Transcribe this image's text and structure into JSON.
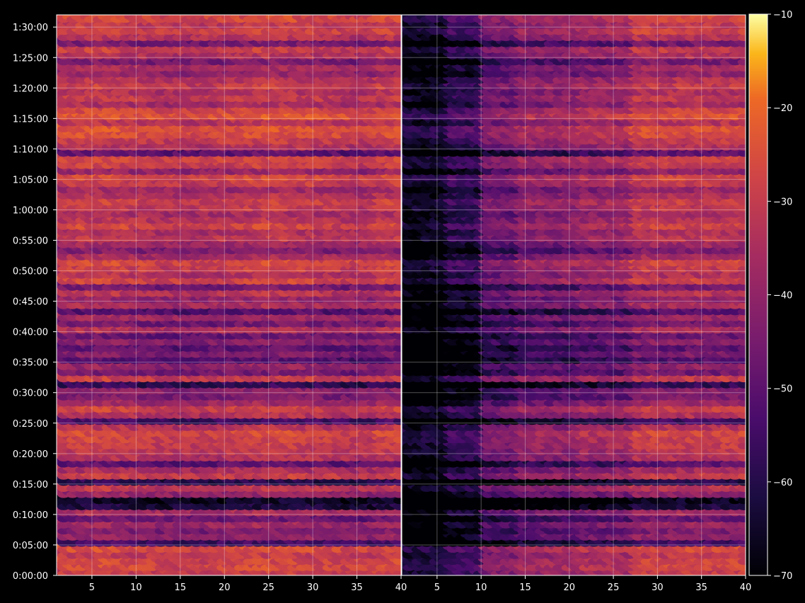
{
  "chart_data": {
    "type": "heatmap",
    "colormap": "inferno",
    "background": "#000000",
    "grid": true,
    "panels": [
      {
        "name": "",
        "x_ticks": [
          "5",
          "10",
          "15",
          "20",
          "25",
          "30",
          "35",
          "40"
        ],
        "x_tick_values": [
          5,
          10,
          15,
          20,
          25,
          30,
          35,
          40
        ],
        "xlim": [
          1,
          40
        ],
        "row_profile": "left",
        "description_hidden": ""
      },
      {
        "name": "",
        "x_ticks": [
          "5",
          "10",
          "15",
          "20",
          "25",
          "30",
          "35",
          "40"
        ],
        "x_tick_values": [
          5,
          10,
          15,
          20,
          25,
          30,
          35,
          40
        ],
        "xlim": [
          1,
          40
        ],
        "row_profile": "right"
      }
    ],
    "y_ticks": [
      "0:00:00",
      "0:05:00",
      "0:10:00",
      "0:15:00",
      "0:20:00",
      "0:25:00",
      "0:30:00",
      "0:35:00",
      "0:40:00",
      "0:45:00",
      "0:50:00",
      "0:55:00",
      "1:00:00",
      "1:05:00",
      "1:10:00",
      "1:15:00",
      "1:20:00",
      "1:25:00",
      "1:30:00"
    ],
    "y_tick_minutes": [
      0,
      5,
      10,
      15,
      20,
      25,
      30,
      35,
      40,
      45,
      50,
      55,
      60,
      65,
      70,
      75,
      80,
      85,
      90
    ],
    "ylim_minutes": [
      0,
      92
    ],
    "colorbar": {
      "ticks": [
        "−10",
        "−20",
        "−30",
        "−40",
        "−50",
        "−60",
        "−70"
      ],
      "tick_values": [
        -10,
        -20,
        -30,
        -40,
        -50,
        -60,
        -70
      ],
      "range": [
        -70,
        -10
      ]
    },
    "row_levels_minutes": [
      [
        0,
        1,
        -30
      ],
      [
        1,
        2,
        -27
      ],
      [
        2,
        3,
        -28
      ],
      [
        3,
        4,
        -31
      ],
      [
        4,
        5,
        -26
      ],
      [
        5,
        6,
        -55
      ],
      [
        6,
        7,
        -40
      ],
      [
        7,
        8,
        -44
      ],
      [
        8,
        9,
        -38
      ],
      [
        9,
        10,
        -48
      ],
      [
        10,
        11,
        -36
      ],
      [
        11,
        12,
        -62
      ],
      [
        12,
        13,
        -66
      ],
      [
        13,
        14,
        -40
      ],
      [
        14,
        15,
        -32
      ],
      [
        15,
        16,
        -60
      ],
      [
        16,
        17,
        -30
      ],
      [
        17,
        18,
        -36
      ],
      [
        18,
        19,
        -50
      ],
      [
        19,
        20,
        -34
      ],
      [
        20,
        21,
        -32
      ],
      [
        21,
        22,
        -30
      ],
      [
        22,
        23,
        -29
      ],
      [
        23,
        24,
        -27
      ],
      [
        24,
        25,
        -33
      ],
      [
        25,
        26,
        -55
      ],
      [
        26,
        27,
        -34
      ],
      [
        27,
        28,
        -29
      ],
      [
        28,
        29,
        -38
      ],
      [
        29,
        30,
        -45
      ],
      [
        30,
        31,
        -42
      ],
      [
        31,
        32,
        -58
      ],
      [
        32,
        33,
        -30
      ],
      [
        33,
        34,
        -46
      ],
      [
        34,
        35,
        -40
      ],
      [
        35,
        36,
        -52
      ],
      [
        36,
        37,
        -44
      ],
      [
        37,
        38,
        -50
      ],
      [
        38,
        39,
        -42
      ],
      [
        39,
        40,
        -48
      ],
      [
        40,
        41,
        -34
      ],
      [
        41,
        42,
        -46
      ],
      [
        42,
        43,
        -38
      ],
      [
        43,
        44,
        -52
      ],
      [
        44,
        45,
        -36
      ],
      [
        45,
        46,
        -40
      ],
      [
        46,
        47,
        -33
      ],
      [
        47,
        48,
        -46
      ],
      [
        48,
        49,
        -28
      ],
      [
        49,
        50,
        -34
      ],
      [
        50,
        51,
        -30
      ],
      [
        51,
        52,
        -27
      ],
      [
        52,
        53,
        -36
      ],
      [
        53,
        54,
        -44
      ],
      [
        54,
        55,
        -38
      ],
      [
        55,
        56,
        -32
      ],
      [
        56,
        57,
        -35
      ],
      [
        57,
        58,
        -28
      ],
      [
        58,
        59,
        -33
      ],
      [
        59,
        60,
        -36
      ],
      [
        60,
        61,
        -31
      ],
      [
        61,
        62,
        -29
      ],
      [
        62,
        63,
        -34
      ],
      [
        63,
        64,
        -38
      ],
      [
        64,
        65,
        -30
      ],
      [
        65,
        66,
        -27
      ],
      [
        66,
        67,
        -40
      ],
      [
        67,
        68,
        -30
      ],
      [
        68,
        69,
        -28
      ],
      [
        69,
        70,
        -50
      ],
      [
        70,
        71,
        -34
      ],
      [
        71,
        72,
        -30
      ],
      [
        72,
        73,
        -26
      ],
      [
        73,
        74,
        -25
      ],
      [
        74,
        75,
        -33
      ],
      [
        75,
        76,
        -24
      ],
      [
        76,
        77,
        -28
      ],
      [
        77,
        78,
        -36
      ],
      [
        78,
        79,
        -31
      ],
      [
        79,
        80,
        -34
      ],
      [
        80,
        81,
        -30
      ],
      [
        81,
        82,
        -33
      ],
      [
        82,
        83,
        -40
      ],
      [
        83,
        84,
        -36
      ],
      [
        84,
        85,
        -45
      ],
      [
        85,
        86,
        -34
      ],
      [
        86,
        87,
        -30
      ],
      [
        87,
        88,
        -46
      ],
      [
        88,
        89,
        -33
      ],
      [
        89,
        90,
        -28
      ],
      [
        90,
        91,
        -31
      ],
      [
        91,
        92,
        -27
      ]
    ]
  }
}
